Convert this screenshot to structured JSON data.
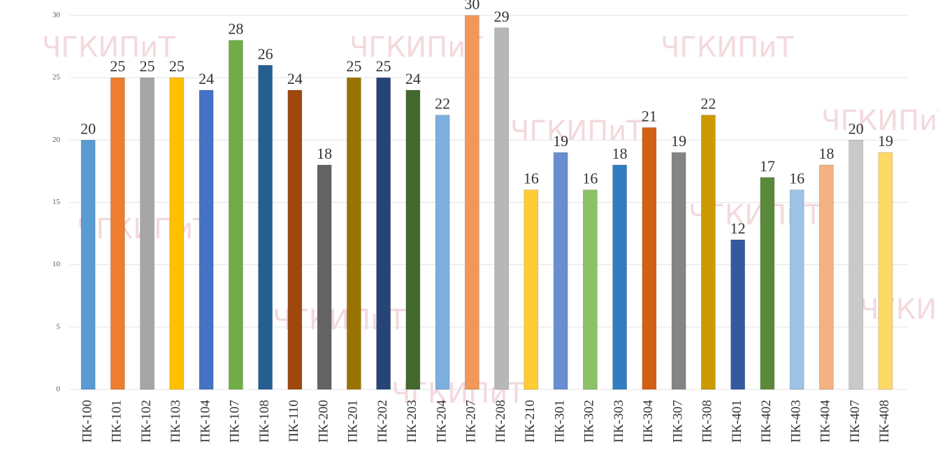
{
  "chart_data": {
    "type": "bar",
    "watermark": "ЧГКИПиТ",
    "categories": [
      "ПК-100",
      "ПК-101",
      "ПК-102",
      "ПК-103",
      "ПК-104",
      "ПК-107",
      "ПК-108",
      "ПК-110",
      "ПК-200",
      "ПК-201",
      "ПК-202",
      "ПК-203",
      "ПК-204",
      "ПК-207",
      "ПК-208",
      "ПК-210",
      "ПК-301",
      "ПК-302",
      "ПК-303",
      "ПК-304",
      "ПК-307",
      "ПК-308",
      "ПК-401",
      "ПК-402",
      "ПК-403",
      "ПК-404",
      "ПК-407",
      "ПК-408"
    ],
    "values": [
      20,
      25,
      25,
      25,
      24,
      28,
      26,
      24,
      18,
      25,
      25,
      24,
      22,
      30,
      29,
      16,
      19,
      16,
      18,
      21,
      19,
      22,
      12,
      17,
      16,
      18,
      20,
      19
    ],
    "colors": [
      "#5b9bd5",
      "#ed7d31",
      "#a5a5a5",
      "#ffc000",
      "#4472c4",
      "#70ad47",
      "#255e91",
      "#9e480e",
      "#636363",
      "#997300",
      "#264478",
      "#43682b",
      "#7cafdd",
      "#f1975a",
      "#b7b7b7",
      "#ffcd33",
      "#698ed0",
      "#8cc168",
      "#327dc2",
      "#d26012",
      "#848484",
      "#cc9a00",
      "#335aa1",
      "#5a8a39",
      "#9dc3e6",
      "#f4b183",
      "#c9c9c9",
      "#ffd966"
    ],
    "ylim": [
      0,
      30
    ],
    "yticks": [
      0,
      5,
      10,
      15,
      20,
      25,
      30
    ],
    "grid": true
  }
}
